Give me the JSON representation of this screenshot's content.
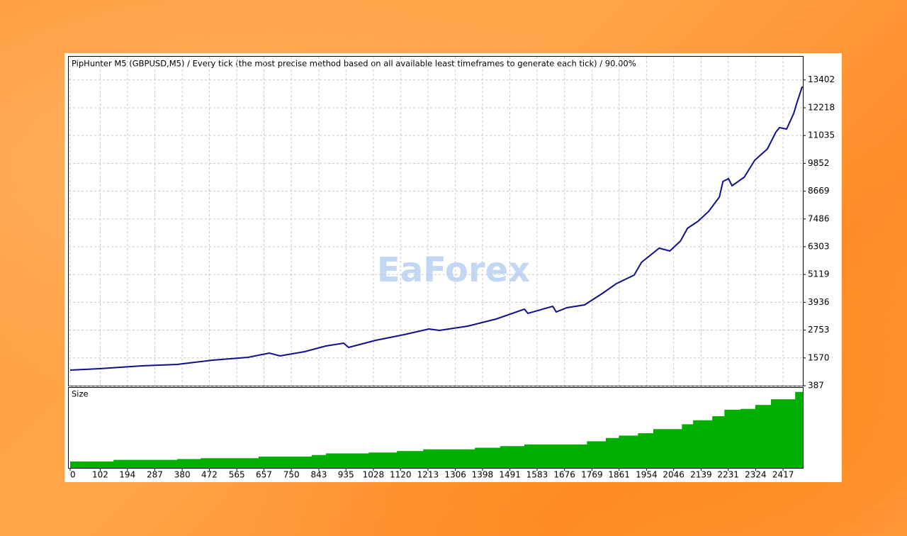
{
  "chart_data": [
    {
      "type": "line",
      "title": "PipHunter M5 (GBPUSD,M5) / Every tick (the most precise method based on all available least timeframes to generate each tick) / 90.00%",
      "x": [
        0,
        99,
        243,
        363,
        483,
        603,
        675,
        711,
        795,
        867,
        927,
        944,
        1036,
        1132,
        1216,
        1252,
        1348,
        1444,
        1540,
        1552,
        1636,
        1648,
        1684,
        1744,
        1804,
        1852,
        1912,
        1937,
        1997,
        2033,
        2069,
        2093,
        2129,
        2165,
        2201,
        2213,
        2232,
        2244,
        2285,
        2321,
        2364,
        2393,
        2405,
        2429,
        2453,
        2463,
        2482
      ],
      "values": [
        1051,
        1111,
        1232,
        1292,
        1474,
        1594,
        1775,
        1655,
        1836,
        2077,
        2198,
        2017,
        2319,
        2560,
        2802,
        2741,
        2922,
        3224,
        3646,
        3465,
        3767,
        3526,
        3707,
        3828,
        4311,
        4733,
        5095,
        5638,
        6242,
        6121,
        6544,
        7087,
        7389,
        7811,
        8415,
        9079,
        9200,
        8898,
        9260,
        9984,
        10467,
        11191,
        11372,
        11312,
        11976,
        12399,
        13123
      ],
      "color": "#0f0f8c",
      "ylim": [
        387,
        14420
      ],
      "yticks": [
        387,
        1570,
        2753,
        3936,
        5119,
        6303,
        7486,
        8669,
        9852,
        11035,
        12218,
        13402
      ],
      "grid": true
    },
    {
      "type": "area",
      "title": "Size",
      "step": true,
      "x": [
        0,
        147,
        363,
        442,
        639,
        819,
        867,
        1012,
        1108,
        1197,
        1372,
        1458,
        1540,
        1752,
        1816,
        1860,
        1925,
        1977,
        2074,
        2112,
        2177,
        2218,
        2273,
        2323,
        2376,
        2458
      ],
      "values": [
        8,
        10,
        11,
        12,
        14,
        16,
        18,
        19,
        21,
        23,
        25,
        27,
        29,
        33,
        37,
        40,
        43,
        48,
        54,
        59,
        64,
        72,
        73,
        78,
        85,
        94
      ],
      "color": "#00b000",
      "ylim": [
        0,
        100
      ],
      "xlim": [
        0,
        2484
      ],
      "xticks": [
        0,
        102,
        194,
        287,
        380,
        472,
        565,
        657,
        750,
        843,
        935,
        1028,
        1120,
        1213,
        1306,
        1398,
        1491,
        1583,
        1676,
        1769,
        1861,
        1954,
        2046,
        2139,
        2231,
        2324,
        2417
      ]
    }
  ],
  "watermark": "EaForex"
}
